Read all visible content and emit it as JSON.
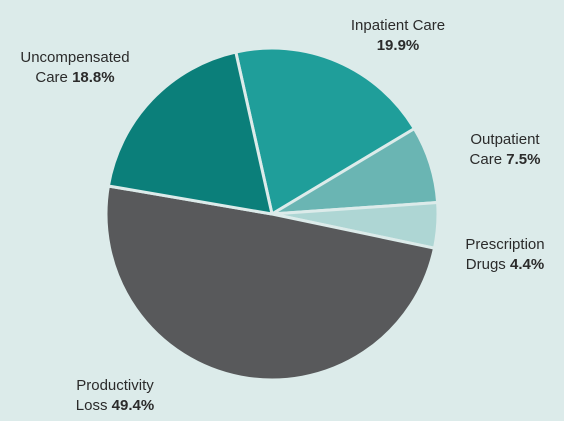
{
  "chart_data": {
    "type": "pie",
    "categories": [
      "Inpatient Care",
      "Outpatient Care",
      "Prescription Drugs",
      "Productivity Loss",
      "Uncompensated Care"
    ],
    "values": [
      19.9,
      7.5,
      4.4,
      49.4,
      18.8
    ],
    "value_labels": [
      "19.9%",
      "7.5%",
      "4.4%",
      "49.4%",
      "18.8%"
    ],
    "colors": [
      "#1f9e9a",
      "#6ab5b3",
      "#aed6d4",
      "#58595b",
      "#0b7f7a"
    ]
  }
}
